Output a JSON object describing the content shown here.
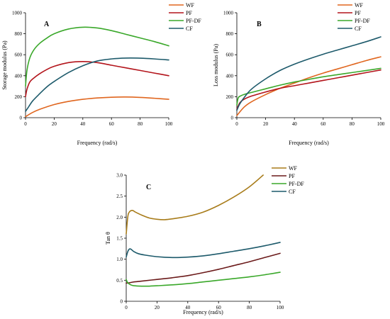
{
  "colors": {
    "A": {
      "WF": "#e0661f",
      "PF": "#b3141b",
      "PF-DF": "#3aa82a",
      "CF": "#1d5a6b"
    },
    "B": {
      "WF": "#e0661f",
      "PF": "#b3141b",
      "PF-DF": "#3aa82a",
      "CF": "#1d5a6b"
    },
    "C": {
      "WF": "#a87c1a",
      "PF": "#6b1a1a",
      "PF-DF": "#3aa82a",
      "CF": "#1d5a6b"
    }
  },
  "chart_data": [
    {
      "id": "A",
      "type": "line",
      "panel_label": "A",
      "xlabel": "Frequency (rad/s)",
      "ylabel": "Storage modulus (Pa)",
      "xlim": [
        0,
        100
      ],
      "ylim": [
        0,
        1000
      ],
      "xticks": [
        0,
        20,
        40,
        60,
        80,
        100
      ],
      "yticks": [
        0,
        200,
        400,
        600,
        800,
        1000
      ],
      "grid": false,
      "legend_position": "top-right, outside plot",
      "series": [
        {
          "name": "WF",
          "x": [
            0,
            5,
            10,
            20,
            30,
            40,
            50,
            60,
            70,
            80,
            90,
            100
          ],
          "y": [
            10,
            50,
            80,
            125,
            155,
            175,
            188,
            195,
            197,
            193,
            185,
            175
          ]
        },
        {
          "name": "PF",
          "x": [
            0,
            1,
            3,
            6,
            10,
            15,
            20,
            30,
            40,
            50,
            60,
            70,
            80,
            90,
            100
          ],
          "y": [
            200,
            270,
            340,
            380,
            420,
            460,
            490,
            525,
            535,
            525,
            500,
            475,
            450,
            425,
            400
          ]
        },
        {
          "name": "PF-DF",
          "x": [
            0,
            1,
            3,
            6,
            10,
            15,
            20,
            30,
            40,
            50,
            60,
            70,
            80,
            90,
            100
          ],
          "y": [
            300,
            450,
            570,
            650,
            710,
            760,
            800,
            845,
            862,
            855,
            830,
            795,
            760,
            725,
            685
          ]
        },
        {
          "name": "CF",
          "x": [
            0,
            2,
            5,
            10,
            15,
            20,
            30,
            40,
            50,
            60,
            70,
            80,
            90,
            100
          ],
          "y": [
            60,
            100,
            160,
            230,
            295,
            345,
            430,
            495,
            540,
            560,
            568,
            567,
            560,
            550
          ]
        }
      ]
    },
    {
      "id": "B",
      "type": "line",
      "panel_label": "B",
      "xlabel": "Frequency (rad/s)",
      "ylabel": "Loss modulus (Pa)",
      "xlim": [
        0,
        100
      ],
      "ylim": [
        0,
        1000
      ],
      "xticks": [
        0,
        20,
        40,
        60,
        80,
        100
      ],
      "yticks": [
        0,
        200,
        400,
        600,
        800,
        1000
      ],
      "grid": false,
      "legend_position": "top-right, outside plot",
      "series": [
        {
          "name": "WF",
          "x": [
            0,
            5,
            10,
            20,
            30,
            40,
            50,
            60,
            70,
            80,
            90,
            100
          ],
          "y": [
            20,
            100,
            150,
            220,
            280,
            330,
            380,
            425,
            465,
            505,
            545,
            580
          ]
        },
        {
          "name": "PF",
          "x": [
            0,
            2,
            5,
            10,
            20,
            30,
            40,
            50,
            60,
            70,
            80,
            90,
            100
          ],
          "y": [
            80,
            140,
            175,
            205,
            245,
            280,
            305,
            330,
            355,
            380,
            405,
            430,
            455
          ]
        },
        {
          "name": "PF-DF",
          "x": [
            0,
            1,
            3,
            6,
            10,
            20,
            30,
            40,
            50,
            60,
            70,
            80,
            90,
            100
          ],
          "y": [
            120,
            190,
            210,
            225,
            240,
            275,
            310,
            340,
            365,
            390,
            410,
            430,
            450,
            470
          ]
        },
        {
          "name": "CF",
          "x": [
            0,
            2,
            5,
            10,
            20,
            30,
            40,
            50,
            60,
            70,
            80,
            90,
            100
          ],
          "y": [
            70,
            130,
            190,
            270,
            370,
            450,
            510,
            560,
            605,
            645,
            685,
            725,
            770
          ]
        }
      ]
    },
    {
      "id": "C",
      "type": "line",
      "panel_label": "C",
      "xlabel": "Frequency (rad/s)",
      "ylabel": "Tan θ",
      "xlim": [
        0,
        100
      ],
      "ylim": [
        0,
        3.0
      ],
      "xticks": [
        0,
        20,
        40,
        60,
        80,
        100
      ],
      "yticks": [
        0,
        0.5,
        1.0,
        1.5,
        2.0,
        2.5,
        3.0
      ],
      "ytick_labels": [
        "0",
        "0.5",
        "1.0",
        "1.5",
        "2.0",
        "2.5",
        "3.0"
      ],
      "grid": false,
      "legend_position": "top-right",
      "series": [
        {
          "name": "WF",
          "x": [
            0,
            1,
            2,
            4,
            6,
            10,
            15,
            20,
            25,
            30,
            40,
            50,
            60,
            70,
            80,
            89
          ],
          "y": [
            1.6,
            2.0,
            2.12,
            2.16,
            2.12,
            2.05,
            1.98,
            1.95,
            1.94,
            1.96,
            2.02,
            2.12,
            2.28,
            2.48,
            2.72,
            3.0
          ]
        },
        {
          "name": "PF",
          "x": [
            0,
            2,
            5,
            10,
            20,
            30,
            40,
            50,
            60,
            70,
            80,
            90,
            100
          ],
          "y": [
            0.43,
            0.44,
            0.46,
            0.48,
            0.52,
            0.56,
            0.61,
            0.68,
            0.76,
            0.85,
            0.94,
            1.04,
            1.14
          ]
        },
        {
          "name": "PF-DF",
          "x": [
            0,
            1,
            3,
            5,
            10,
            15,
            20,
            30,
            40,
            50,
            60,
            70,
            80,
            90,
            100
          ],
          "y": [
            0.52,
            0.44,
            0.39,
            0.37,
            0.36,
            0.36,
            0.37,
            0.39,
            0.42,
            0.46,
            0.5,
            0.54,
            0.58,
            0.63,
            0.69
          ]
        },
        {
          "name": "CF",
          "x": [
            0,
            1,
            2,
            3,
            5,
            8,
            12,
            20,
            30,
            40,
            50,
            60,
            70,
            80,
            90,
            100
          ],
          "y": [
            1.05,
            1.18,
            1.24,
            1.24,
            1.18,
            1.13,
            1.1,
            1.06,
            1.04,
            1.05,
            1.08,
            1.13,
            1.19,
            1.25,
            1.32,
            1.4
          ]
        }
      ]
    }
  ]
}
